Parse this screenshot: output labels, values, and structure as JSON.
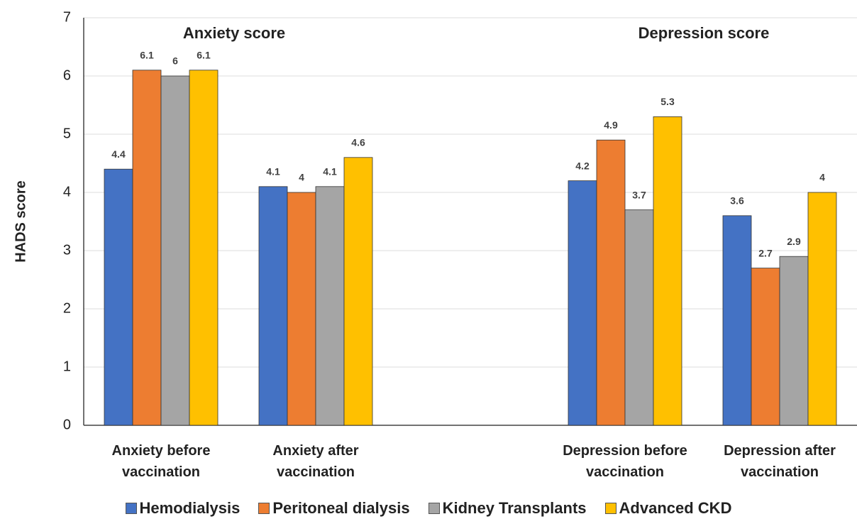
{
  "chart_data": {
    "type": "bar",
    "y_label": "HADS score",
    "annotations": [
      "Anxiety score",
      "Depression score"
    ],
    "categories": [
      "Anxiety before vaccination",
      "Anxiety after vaccination",
      null,
      "Depression before vaccination",
      "Depression after vaccination"
    ],
    "series": [
      {
        "name": "Hemodialysis",
        "color": "#4472c4",
        "values": [
          4.4,
          4.1,
          null,
          4.2,
          3.6
        ]
      },
      {
        "name": "Peritoneal dialysis",
        "color": "#ed7d31",
        "values": [
          6.1,
          4,
          null,
          4.9,
          2.7
        ]
      },
      {
        "name": "Kidney Transplants",
        "color": "#a5a5a5",
        "values": [
          6,
          4.1,
          null,
          3.7,
          2.9
        ]
      },
      {
        "name": "Advanced CKD",
        "color": "#ffc000",
        "values": [
          6.1,
          4.6,
          null,
          5.3,
          4
        ]
      }
    ],
    "ylim": [
      0,
      7
    ],
    "yticks": [
      0,
      1,
      2,
      3,
      4,
      5,
      6,
      7
    ],
    "grid": true,
    "legend": "bottom"
  }
}
